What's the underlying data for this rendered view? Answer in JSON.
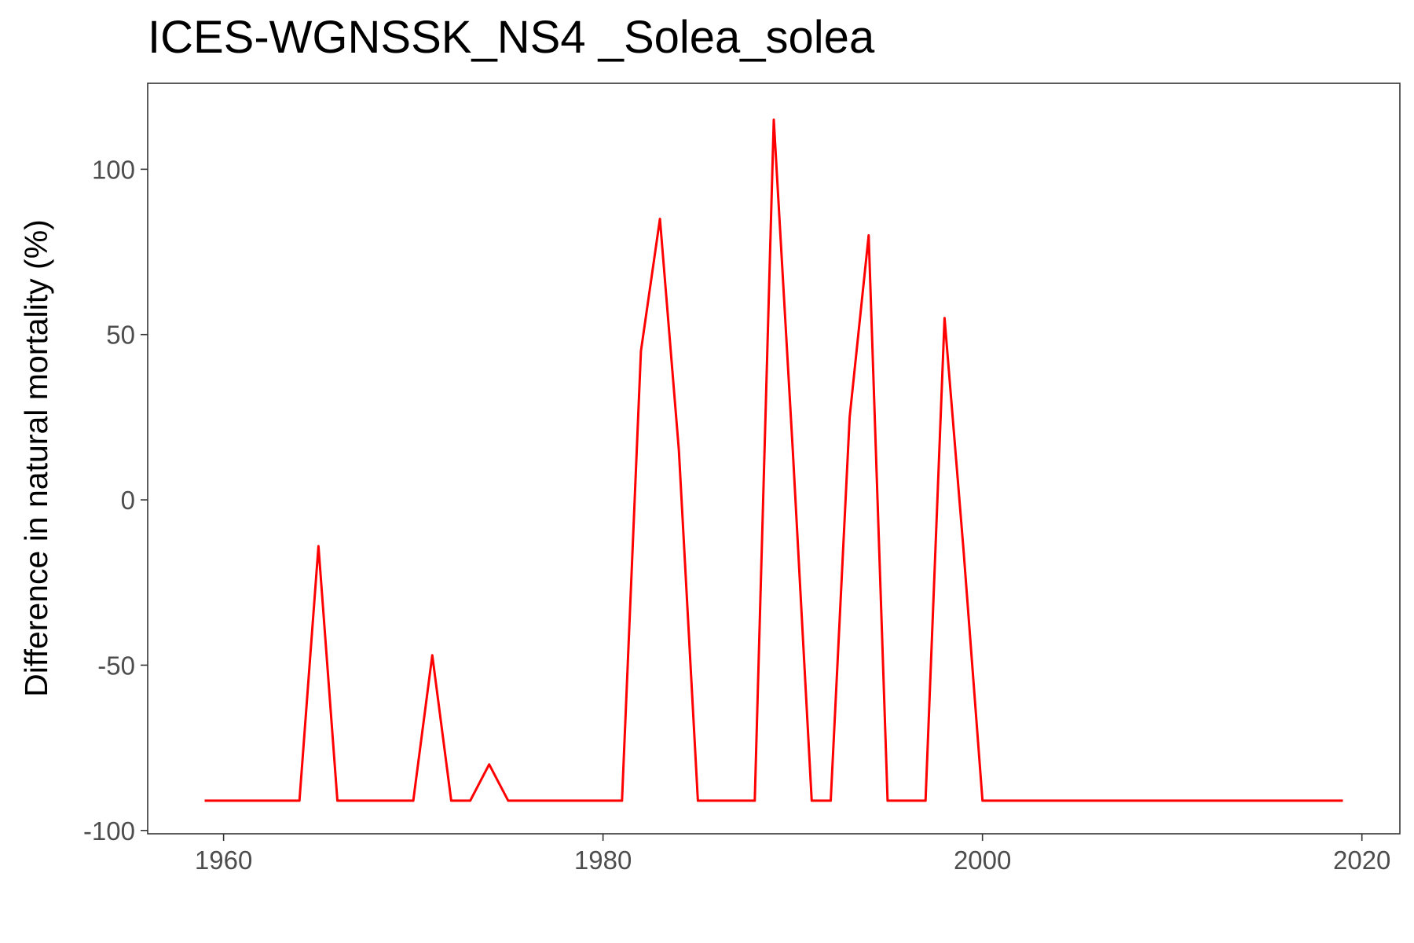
{
  "chart_data": {
    "type": "line",
    "title": "ICES-WGNSSK_NS4 _Solea_solea",
    "xlabel": "",
    "ylabel": "Difference in natural mortality (%)",
    "xlim": [
      1956,
      2022
    ],
    "ylim": [
      -101,
      126
    ],
    "x_ticks": [
      "1960",
      "1980",
      "2000",
      "2020"
    ],
    "y_ticks": [
      "100",
      "50",
      "0",
      "-50",
      "-100"
    ],
    "x_tick_values": [
      1960,
      1980,
      2000,
      2020
    ],
    "y_tick_values": [
      100,
      50,
      0,
      -50,
      -100
    ],
    "grid": false,
    "series": [
      {
        "color": "#ff0000",
        "x": [
          1959,
          1960,
          1961,
          1962,
          1963,
          1964,
          1965,
          1966,
          1967,
          1968,
          1969,
          1970,
          1971,
          1972,
          1973,
          1974,
          1975,
          1976,
          1977,
          1978,
          1979,
          1980,
          1981,
          1982,
          1983,
          1984,
          1985,
          1986,
          1987,
          1988,
          1989,
          1990,
          1991,
          1992,
          1993,
          1994,
          1995,
          1996,
          1997,
          1998,
          1999,
          2000,
          2001,
          2002,
          2003,
          2004,
          2005,
          2006,
          2007,
          2008,
          2009,
          2010,
          2011,
          2012,
          2013,
          2014,
          2015,
          2016,
          2017,
          2018,
          2019
        ],
        "y": [
          -91,
          -91,
          -91,
          -91,
          -91,
          -91,
          -14,
          -91,
          -91,
          -91,
          -91,
          -91,
          -47,
          -91,
          -91,
          -80,
          -91,
          -91,
          -91,
          -91,
          -91,
          -91,
          -91,
          45,
          85,
          15,
          -91,
          -91,
          -91,
          -91,
          115,
          15,
          -91,
          -91,
          25,
          80,
          -91,
          -91,
          -91,
          55,
          -15,
          -91,
          -91,
          -91,
          -91,
          -91,
          -91,
          -91,
          -91,
          -91,
          -91,
          -91,
          -91,
          -91,
          -91,
          -91,
          -91,
          -91,
          -91,
          -91,
          -91
        ]
      }
    ]
  }
}
